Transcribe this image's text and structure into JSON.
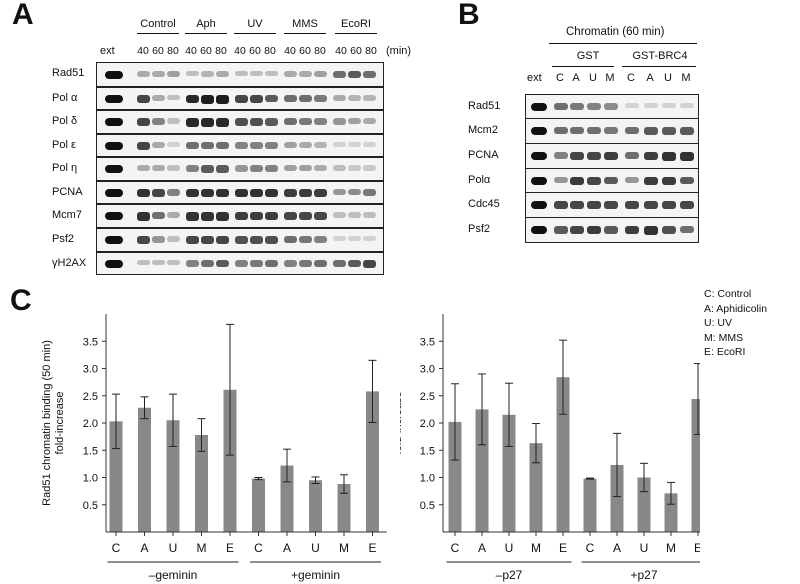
{
  "panelA": {
    "letter": "A",
    "ext_label": "ext",
    "groups": [
      "Control",
      "Aph",
      "UV",
      "MMS",
      "EcoRI"
    ],
    "times": [
      "40",
      "60",
      "80"
    ],
    "min_label": "(min)",
    "rows": [
      "Rad51",
      "Pol α",
      "Pol δ",
      "Pol ε",
      "Pol η",
      "PCNA",
      "Mcm7",
      "Psf2",
      "γH2AX"
    ]
  },
  "panelB": {
    "letter": "B",
    "title": "Chromatin (60 min)",
    "groups": [
      "GST",
      "GST-BRC4"
    ],
    "ext_label": "ext",
    "lanes": [
      "C",
      "A",
      "U",
      "M",
      "C",
      "A",
      "U",
      "M"
    ],
    "rows": [
      "Rad51",
      "Mcm2",
      "PCNA",
      "Polα",
      "Cdc45",
      "Psf2"
    ]
  },
  "legend": [
    "C: Control",
    "A: Aphidicolin",
    "U: UV",
    "M: MMS",
    "E: EcoRI"
  ],
  "panelC": {
    "letter": "C"
  },
  "chart_data": [
    {
      "type": "bar",
      "ylabel": "Rad51 chromatin binding (50 min) fold-increase",
      "ylim": [
        0,
        4.0
      ],
      "yticks": [
        0.5,
        1.0,
        1.5,
        2.0,
        2.5,
        3.0,
        3.5
      ],
      "categories": [
        "C",
        "A",
        "U",
        "M",
        "E",
        "C",
        "A",
        "U",
        "M",
        "E"
      ],
      "groups": [
        {
          "label": "–geminin",
          "size": 5
        },
        {
          "label": "+geminin",
          "size": 5
        }
      ],
      "values": [
        2.03,
        2.28,
        2.05,
        1.78,
        2.61,
        0.98,
        1.22,
        0.95,
        0.88,
        2.58
      ],
      "errors": [
        0.5,
        0.2,
        0.48,
        0.3,
        1.2,
        0.02,
        0.3,
        0.06,
        0.17,
        0.57
      ],
      "color": "#888888"
    },
    {
      "type": "bar",
      "ylabel": "Rad51 chromatin binding (50 min) fold-increase",
      "ylim": [
        0,
        4.0
      ],
      "yticks": [
        0.5,
        1.0,
        1.5,
        2.0,
        2.5,
        3.0,
        3.5
      ],
      "categories": [
        "C",
        "A",
        "U",
        "M",
        "E",
        "C",
        "A",
        "U",
        "M",
        "E"
      ],
      "groups": [
        {
          "label": "–p27",
          "size": 5
        },
        {
          "label": "+p27",
          "size": 5
        }
      ],
      "values": [
        2.02,
        2.25,
        2.15,
        1.63,
        2.84,
        0.98,
        1.23,
        1.0,
        0.71,
        2.44
      ],
      "errors": [
        0.7,
        0.65,
        0.58,
        0.36,
        0.68,
        0.01,
        0.58,
        0.26,
        0.2,
        0.65
      ],
      "color": "#888888"
    }
  ]
}
